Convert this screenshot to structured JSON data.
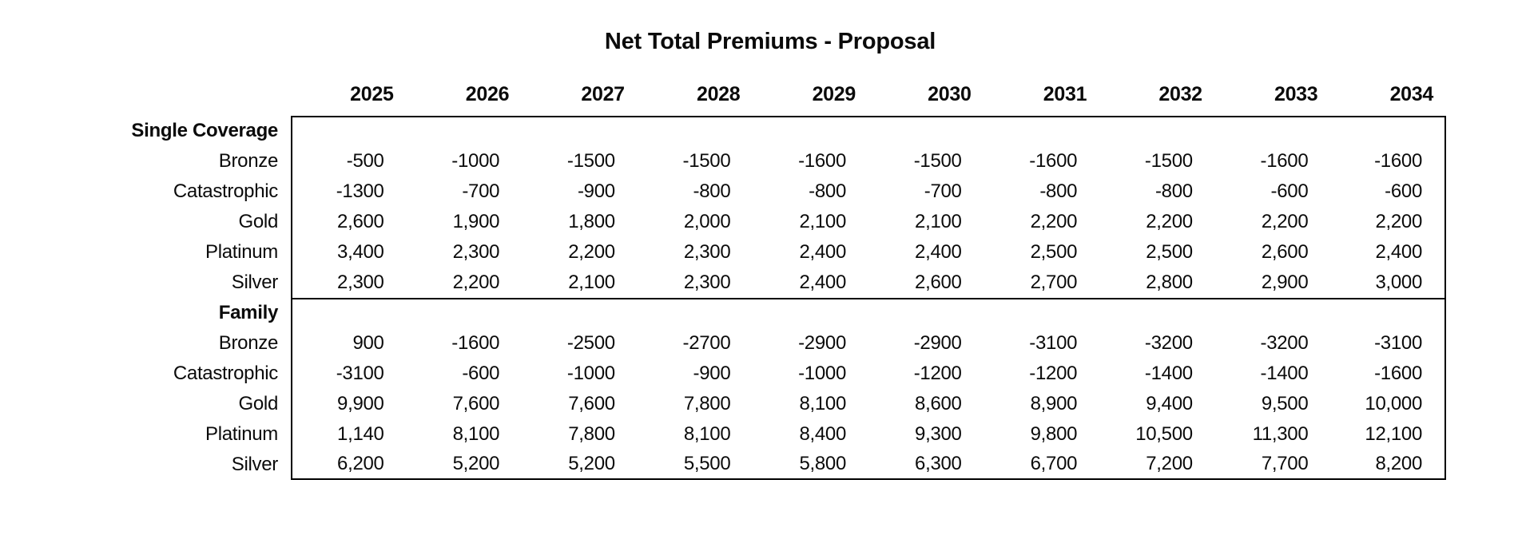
{
  "title": "Net Total Premiums - Proposal",
  "years": [
    "2025",
    "2026",
    "2027",
    "2028",
    "2029",
    "2030",
    "2031",
    "2032",
    "2033",
    "2034"
  ],
  "sections": [
    {
      "name": "Single Coverage",
      "rows": [
        {
          "label": "Bronze",
          "values": [
            "-500",
            "-1000",
            "-1500",
            "-1500",
            "-1600",
            "-1500",
            "-1600",
            "-1500",
            "-1600",
            "-1600"
          ]
        },
        {
          "label": "Catastrophic",
          "values": [
            "-1300",
            "-700",
            "-900",
            "-800",
            "-800",
            "-700",
            "-800",
            "-800",
            "-600",
            "-600"
          ]
        },
        {
          "label": "Gold",
          "values": [
            "2,600",
            "1,900",
            "1,800",
            "2,000",
            "2,100",
            "2,100",
            "2,200",
            "2,200",
            "2,200",
            "2,200"
          ]
        },
        {
          "label": "Platinum",
          "values": [
            "3,400",
            "2,300",
            "2,200",
            "2,300",
            "2,400",
            "2,400",
            "2,500",
            "2,500",
            "2,600",
            "2,400"
          ]
        },
        {
          "label": "Silver",
          "values": [
            "2,300",
            "2,200",
            "2,100",
            "2,300",
            "2,400",
            "2,600",
            "2,700",
            "2,800",
            "2,900",
            "3,000"
          ]
        }
      ]
    },
    {
      "name": "Family",
      "rows": [
        {
          "label": "Bronze",
          "values": [
            "900",
            "-1600",
            "-2500",
            "-2700",
            "-2900",
            "-2900",
            "-3100",
            "-3200",
            "-3200",
            "-3100"
          ]
        },
        {
          "label": "Catastrophic",
          "values": [
            "-3100",
            "-600",
            "-1000",
            "-900",
            "-1000",
            "-1200",
            "-1200",
            "-1400",
            "-1400",
            "-1600"
          ]
        },
        {
          "label": "Gold",
          "values": [
            "9,900",
            "7,600",
            "7,600",
            "7,800",
            "8,100",
            "8,600",
            "8,900",
            "9,400",
            "9,500",
            "10,000"
          ]
        },
        {
          "label": "Platinum",
          "values": [
            "1,140",
            "8,100",
            "7,800",
            "8,100",
            "8,400",
            "9,300",
            "9,800",
            "10,500",
            "11,300",
            "12,100"
          ]
        },
        {
          "label": "Silver",
          "values": [
            "6,200",
            "5,200",
            "5,200",
            "5,500",
            "5,800",
            "6,300",
            "6,700",
            "7,200",
            "7,700",
            "8,200"
          ]
        }
      ]
    }
  ],
  "chart_data": {
    "type": "table",
    "title": "Net Total Premiums - Proposal",
    "columns": [
      2025,
      2026,
      2027,
      2028,
      2029,
      2030,
      2031,
      2032,
      2033,
      2034
    ],
    "row_groups": [
      {
        "group": "Single Coverage",
        "rows": [
          {
            "label": "Bronze",
            "values": [
              -500,
              -1000,
              -1500,
              -1500,
              -1600,
              -1500,
              -1600,
              -1500,
              -1600,
              -1600
            ]
          },
          {
            "label": "Catastrophic",
            "values": [
              -1300,
              -700,
              -900,
              -800,
              -800,
              -700,
              -800,
              -800,
              -600,
              -600
            ]
          },
          {
            "label": "Gold",
            "values": [
              2600,
              1900,
              1800,
              2000,
              2100,
              2100,
              2200,
              2200,
              2200,
              2200
            ]
          },
          {
            "label": "Platinum",
            "values": [
              3400,
              2300,
              2200,
              2300,
              2400,
              2400,
              2500,
              2500,
              2600,
              2400
            ]
          },
          {
            "label": "Silver",
            "values": [
              2300,
              2200,
              2100,
              2300,
              2400,
              2600,
              2700,
              2800,
              2900,
              3000
            ]
          }
        ]
      },
      {
        "group": "Family",
        "rows": [
          {
            "label": "Bronze",
            "values": [
              900,
              -1600,
              -2500,
              -2700,
              -2900,
              -2900,
              -3100,
              -3200,
              -3200,
              -3100
            ]
          },
          {
            "label": "Catastrophic",
            "values": [
              -3100,
              -600,
              -1000,
              -900,
              -1000,
              -1200,
              -1200,
              -1400,
              -1400,
              -1600
            ]
          },
          {
            "label": "Gold",
            "values": [
              9900,
              7600,
              7600,
              7800,
              8100,
              8600,
              8900,
              9400,
              9500,
              10000
            ]
          },
          {
            "label": "Platinum",
            "values": [
              1140,
              8100,
              7800,
              8100,
              8400,
              9300,
              9800,
              10500,
              11300,
              12100
            ]
          },
          {
            "label": "Silver",
            "values": [
              6200,
              5200,
              5200,
              5500,
              5800,
              6300,
              6700,
              7200,
              7700,
              8200
            ]
          }
        ]
      }
    ]
  }
}
